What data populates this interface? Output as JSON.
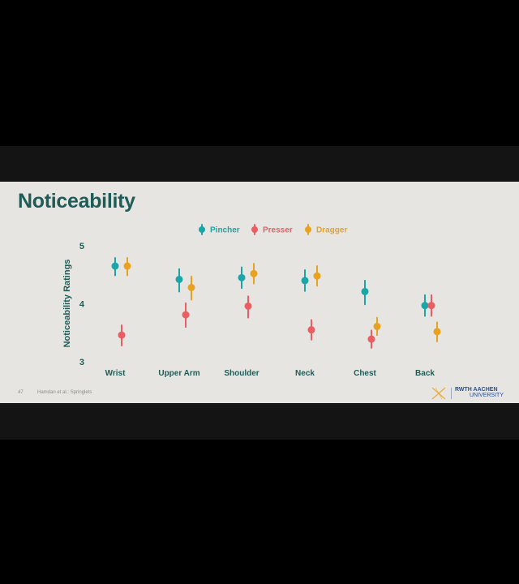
{
  "slide": {
    "title": "Noticeability",
    "page_number": "47",
    "citation": "Hamdan et al.: Springlets",
    "logo": {
      "line1": "RWTH AACHEN",
      "line2": "UNIVERSITY",
      "mark_icon": "x-mark-icon",
      "color": "#2a4f8f"
    }
  },
  "chart_data": {
    "type": "scatter",
    "ylabel": "Noticeability Ratings",
    "ylim": [
      3,
      5
    ],
    "yticks": [
      3,
      4,
      5
    ],
    "categories": [
      "Wrist",
      "Upper Arm",
      "Shoulder",
      "Neck",
      "Chest",
      "Back"
    ],
    "legend_position": "top",
    "series": [
      {
        "name": "Pincher",
        "color": "#1aa5a8",
        "values": [
          4.65,
          4.42,
          4.45,
          4.4,
          4.21,
          3.97
        ],
        "ci_low": [
          4.49,
          4.21,
          4.27,
          4.22,
          3.99,
          3.79
        ],
        "ci_high": [
          4.79,
          4.6,
          4.63,
          4.58,
          4.4,
          4.15
        ]
      },
      {
        "name": "Presser",
        "color": "#e95e63",
        "values": [
          3.46,
          3.81,
          3.96,
          3.55,
          3.39,
          3.97
        ],
        "ci_low": [
          3.28,
          3.6,
          3.76,
          3.38,
          3.24,
          3.79
        ],
        "ci_high": [
          3.63,
          4.01,
          4.13,
          3.72,
          3.54,
          4.15
        ]
      },
      {
        "name": "Dragger",
        "color": "#e8a21f",
        "values": [
          4.65,
          4.28,
          4.52,
          4.48,
          3.61,
          3.52
        ],
        "ci_low": [
          4.49,
          4.07,
          4.35,
          4.31,
          3.46,
          3.35
        ],
        "ci_high": [
          4.79,
          4.47,
          4.69,
          4.65,
          3.76,
          3.68
        ]
      }
    ]
  }
}
